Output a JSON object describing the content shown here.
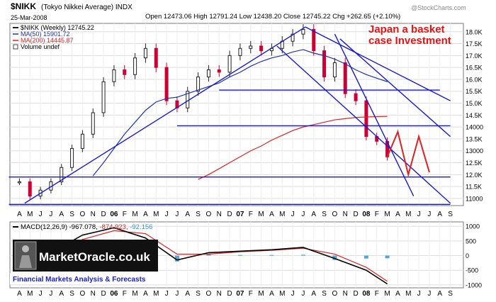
{
  "header": {
    "symbol": "$NIKK",
    "symbol_desc": "(Tokyo Nikkei Average) INDX",
    "date": "25-Mar-2008",
    "ohlc": "Open 12473.06  High 12791.24  Low 12438.20  Close 12745.22  Chg +262.65 (+2.10%)",
    "watermark": "@StockCharts.com"
  },
  "legend": {
    "price": "$NIKK (Weekly) 12745.22",
    "ma50": "MA(50) 15901.72",
    "ma200": "MA(200) 14445.87",
    "volume": "Volume undef"
  },
  "annotation": {
    "line1": "Japan a basket",
    "line2": "case Investment"
  },
  "macd_legend": {
    "label": "MACD(12,26,9)",
    "macd": "-967.078,",
    "signal": "-874.923,",
    "hist": "-92.156"
  },
  "branding": {
    "logo": "MarketOracle.co.uk",
    "tagline": "Financial Markets Analysis & Forecasts"
  },
  "colors": {
    "price_up": "#222222",
    "price_down": "#cc0033",
    "ma50": "#2233aa",
    "ma200": "#dd2222",
    "trendline": "#1a1acc",
    "forecast": "#dd2222",
    "annotation": "#ee1111",
    "macd": "#000000",
    "signal": "#dd2222",
    "histogram": "#3399cc"
  },
  "chart_data": [
    {
      "type": "line",
      "title": "$NIKK (Tokyo Nikkei Average) INDX",
      "x_tick_labels": [
        "A",
        "M",
        "J",
        "J",
        "A",
        "S",
        "O",
        "N",
        "D",
        "06",
        "F",
        "M",
        "A",
        "M",
        "J",
        "J",
        "A",
        "S",
        "O",
        "N",
        "D",
        "07",
        "F",
        "M",
        "A",
        "M",
        "J",
        "J",
        "A",
        "S",
        "O",
        "N",
        "D",
        "08",
        "F",
        "M",
        "A",
        "M",
        "J",
        "J",
        "A",
        "S"
      ],
      "y_ticks": [
        11000,
        11500,
        12000,
        12500,
        13000,
        13500,
        14000,
        14500,
        15000,
        15500,
        16000,
        16500,
        17000,
        17500,
        18000
      ],
      "y_tick_labels": [
        "11000",
        "11.5K",
        "12.0K",
        "12.5K",
        "13000",
        "13.5K",
        "14000",
        "14.5K",
        "15.0K",
        "15.5K",
        "16.0K",
        "16.5K",
        "17.0K",
        "17.5K",
        "18.0K"
      ],
      "ylim": [
        10700,
        18350
      ],
      "x": [
        "2005-04",
        "2005-05",
        "2005-06",
        "2005-07",
        "2005-08",
        "2005-09",
        "2005-10",
        "2005-11",
        "2005-12",
        "2006-01",
        "2006-02",
        "2006-03",
        "2006-04",
        "2006-05",
        "2006-06",
        "2006-07",
        "2006-08",
        "2006-09",
        "2006-10",
        "2006-11",
        "2006-12",
        "2007-01",
        "2007-02",
        "2007-03",
        "2007-04",
        "2007-05",
        "2007-06",
        "2007-07",
        "2007-08",
        "2007-09",
        "2007-10",
        "2007-11",
        "2007-12",
        "2008-01",
        "2008-02",
        "2008-03"
      ],
      "series": [
        {
          "name": "$NIKK (Weekly)",
          "values": [
            11700,
            11100,
            11350,
            11700,
            12300,
            13100,
            13700,
            14600,
            15900,
            16400,
            16200,
            16900,
            17300,
            16500,
            15100,
            14800,
            15500,
            16100,
            16400,
            16300,
            17000,
            17300,
            17400,
            17200,
            17300,
            17600,
            17900,
            18100,
            17200,
            16100,
            16700,
            15400,
            15100,
            13600,
            13400,
            12745
          ]
        },
        {
          "name": "MA(50)",
          "values": [
            null,
            null,
            null,
            null,
            null,
            null,
            null,
            11950,
            12500,
            13100,
            13700,
            14200,
            14700,
            15050,
            15200,
            15250,
            15400,
            15550,
            15700,
            15850,
            16100,
            16300,
            16550,
            16750,
            16900,
            17000,
            17150,
            17250,
            17100,
            17000,
            16850,
            16650,
            16400,
            16200,
            16050,
            15901.72
          ]
        },
        {
          "name": "MA(200)",
          "values": [
            null,
            null,
            null,
            null,
            null,
            null,
            null,
            null,
            null,
            null,
            null,
            null,
            null,
            null,
            null,
            null,
            null,
            11800,
            12000,
            12250,
            12500,
            12750,
            13000,
            13200,
            13450,
            13650,
            13850,
            14000,
            14100,
            14200,
            14300,
            14350,
            14400,
            14420,
            14435,
            14445.87
          ]
        }
      ],
      "forecast": {
        "x": [
          "2008-03",
          "2008-04",
          "2008-05",
          "2008-06",
          "2008-07"
        ],
        "values": [
          12745,
          13800,
          12000,
          13600,
          12100
        ]
      }
    },
    {
      "type": "line",
      "title": "MACD(12,26,9)",
      "y_ticks": [
        1000,
        500,
        0,
        -500,
        -1000
      ],
      "y_tick_labels": [
        "1000",
        "500",
        "0",
        "-500",
        "-1000"
      ],
      "ylim": [
        -1100,
        1150
      ],
      "x": [
        "2005-04",
        "2005-07",
        "2005-10",
        "2006-01",
        "2006-04",
        "2006-07",
        "2006-10",
        "2007-01",
        "2007-04",
        "2007-07",
        "2007-10",
        "2008-01",
        "2008-03"
      ],
      "series": [
        {
          "name": "MACD",
          "values": [
            -300,
            100,
            700,
            950,
            600,
            -150,
            100,
            150,
            200,
            280,
            -100,
            -500,
            -967.078
          ]
        },
        {
          "name": "Signal",
          "values": [
            -250,
            50,
            550,
            850,
            750,
            50,
            50,
            130,
            180,
            250,
            50,
            -400,
            -874.923
          ]
        },
        {
          "name": "Histogram",
          "values": [
            -50,
            50,
            150,
            100,
            -150,
            -200,
            50,
            20,
            20,
            30,
            -150,
            -100,
            -92.156
          ]
        }
      ]
    }
  ]
}
